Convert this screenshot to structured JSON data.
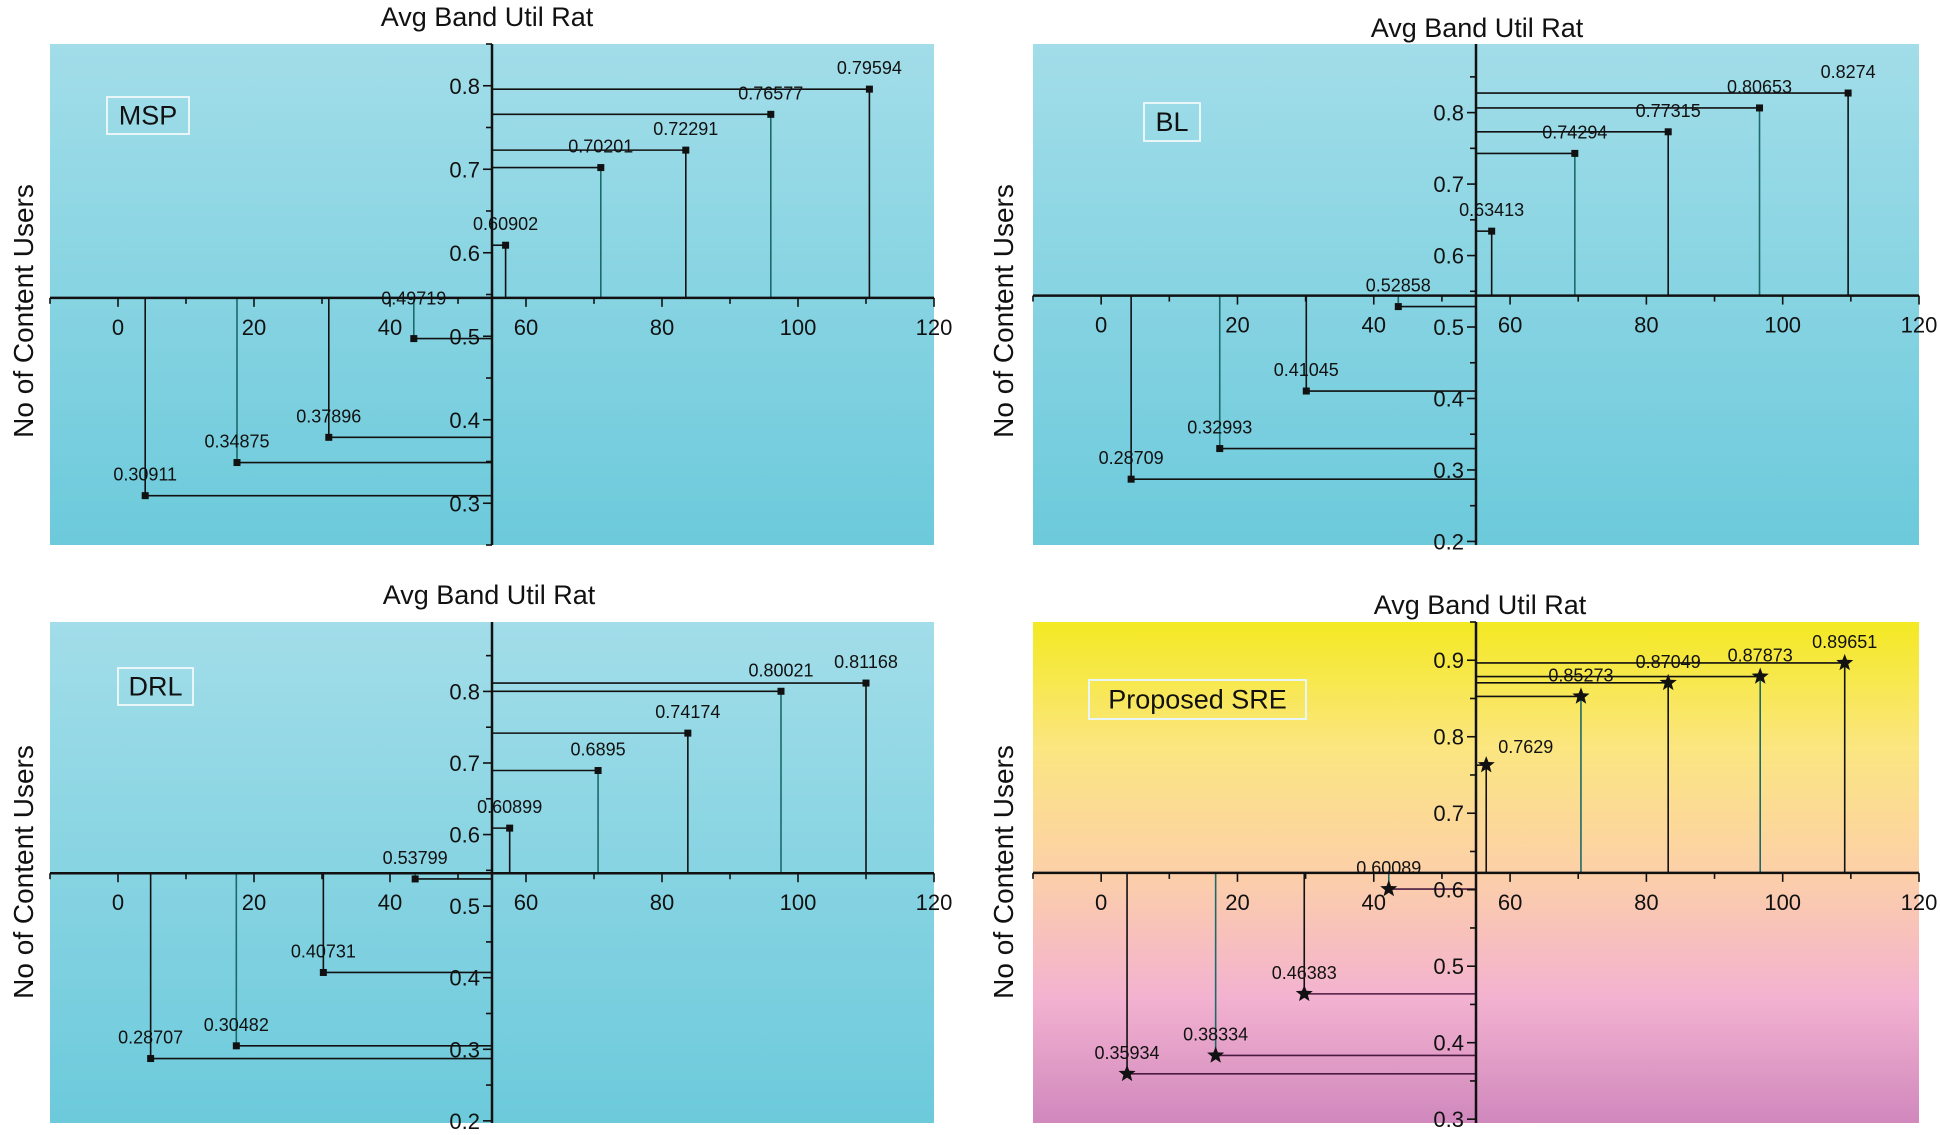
{
  "chart_data": [
    {
      "type": "scatter",
      "title": "Avg Band Util Rat",
      "ylabel": "No of Content Users",
      "legend": "MSP",
      "legend_placement": "top-left",
      "marker": "square",
      "xlim": [
        -10,
        120
      ],
      "ylim": [
        0.25,
        0.85
      ],
      "x_axis_crosses_y_at": 0.546,
      "y_axis_crosses_x_at": 55,
      "xticks": [
        0,
        20,
        40,
        60,
        80,
        100,
        120
      ],
      "yticks": [
        0.3,
        0.4,
        0.5,
        0.6,
        0.7,
        0.8
      ],
      "grid": false,
      "background": [
        "#a2dde9",
        "#6ccadb"
      ],
      "x": [
        4,
        17.5,
        31,
        43.5,
        57,
        71,
        83.5,
        96,
        110.5
      ],
      "y": [
        0.30911,
        0.34875,
        0.37896,
        0.49719,
        0.60902,
        0.70201,
        0.72291,
        0.76577,
        0.79594
      ]
    },
    {
      "type": "scatter",
      "title": "Avg Band Util Rat",
      "ylabel": "No of Content Users",
      "legend": "BL",
      "legend_placement": "top-left",
      "marker": "square",
      "xlim": [
        -10,
        120
      ],
      "ylim": [
        0.195,
        0.896
      ],
      "x_axis_crosses_y_at": 0.544,
      "y_axis_crosses_x_at": 55,
      "xticks": [
        0,
        20,
        40,
        60,
        80,
        100,
        120
      ],
      "yticks": [
        0.2,
        0.3,
        0.4,
        0.5,
        0.6,
        0.7,
        0.8
      ],
      "grid": false,
      "background": [
        "#a2dde9",
        "#6ccadb"
      ],
      "x": [
        4.4,
        17.4,
        30.1,
        43.6,
        57.3,
        69.5,
        83.2,
        96.6,
        109.6
      ],
      "y": [
        0.28709,
        0.32993,
        0.41045,
        0.52858,
        0.63413,
        0.74294,
        0.77315,
        0.80653,
        0.8274
      ]
    },
    {
      "type": "scatter",
      "title": "Avg Band Util Rat",
      "ylabel": "No of Content Users",
      "legend": "DRL",
      "legend_placement": "top-left",
      "marker": "square",
      "xlim": [
        -10,
        120
      ],
      "ylim": [
        0.197,
        0.897
      ],
      "x_axis_crosses_y_at": 0.546,
      "y_axis_crosses_x_at": 55,
      "xticks": [
        0,
        20,
        40,
        60,
        80,
        100,
        120
      ],
      "yticks": [
        0.2,
        0.3,
        0.4,
        0.5,
        0.6,
        0.7,
        0.8
      ],
      "grid": false,
      "background": [
        "#a2dde9",
        "#6ccadb"
      ],
      "x": [
        4.8,
        17.4,
        30.2,
        43.7,
        57.6,
        70.6,
        83.8,
        97.5,
        110
      ],
      "y": [
        0.28707,
        0.30482,
        0.40731,
        0.53799,
        0.60899,
        0.6895,
        0.74174,
        0.80021,
        0.81168
      ]
    },
    {
      "type": "scatter",
      "title": "Avg Band Util Rat",
      "ylabel": "No of Content Users",
      "legend": "Proposed SRE",
      "legend_placement": "top-left",
      "marker": "star",
      "xlim": [
        -10,
        120
      ],
      "ylim": [
        0.295,
        0.95
      ],
      "x_axis_crosses_y_at": 0.622,
      "y_axis_crosses_x_at": 55,
      "xticks": [
        0,
        20,
        40,
        60,
        80,
        100,
        120
      ],
      "yticks": [
        0.3,
        0.4,
        0.5,
        0.6,
        0.7,
        0.8,
        0.9
      ],
      "grid": false,
      "background": [
        "#f4e922",
        "#fbe680",
        "#fcd0a8",
        "#f3b2d0",
        "#d088bd"
      ],
      "x": [
        3.8,
        16.8,
        29.8,
        42.2,
        56.5,
        70.4,
        83.2,
        96.7,
        109.1
      ],
      "y": [
        0.35934,
        0.38334,
        0.46383,
        0.60089,
        0.7629,
        0.85273,
        0.87049,
        0.87873,
        0.89651
      ]
    }
  ]
}
